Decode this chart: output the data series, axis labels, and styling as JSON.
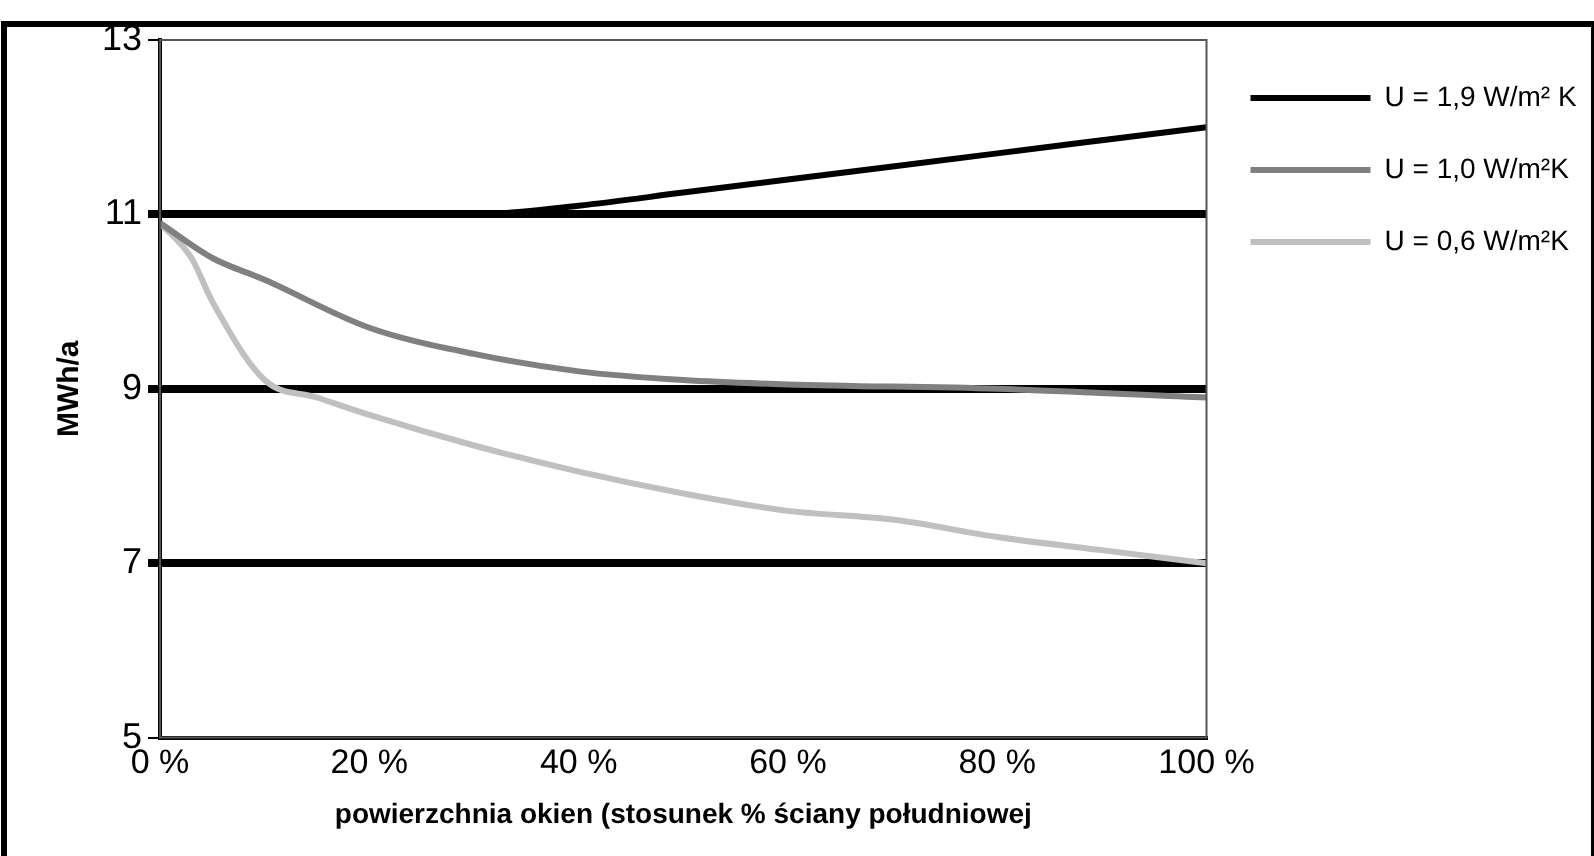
{
  "chart_data": {
    "type": "line",
    "xlabel": "powierzchnia okien (stosunek % ściany południowej",
    "ylabel": "MWh/a",
    "xlim": [
      0,
      100
    ],
    "xticks": [
      {
        "value": 0,
        "label": "0 %"
      },
      {
        "value": 20,
        "label": "20 %"
      },
      {
        "value": 40,
        "label": "40 %"
      },
      {
        "value": 60,
        "label": "60 %"
      },
      {
        "value": 80,
        "label": "80 %"
      },
      {
        "value": 100,
        "label": "100 %"
      }
    ],
    "ylim": [
      5,
      13
    ],
    "yticks": [
      5,
      7,
      9,
      11,
      13
    ],
    "grid": "y",
    "legend": "right",
    "marker": "none",
    "line_style": "solid",
    "series": [
      {
        "name": "U = 1,9 W/m² K",
        "color": "#000000",
        "x": [
          0,
          10,
          20,
          30,
          40,
          50,
          60,
          70,
          80,
          90,
          100
        ],
        "values": [
          11,
          11,
          11,
          11,
          11.1,
          11.25,
          11.4,
          11.55,
          11.7,
          11.85,
          12
        ]
      },
      {
        "name": "U = 1,0 W/m²K",
        "color": "#808080",
        "x": [
          0,
          5,
          10,
          20,
          30,
          40,
          50,
          60,
          80,
          100
        ],
        "values": [
          10.9,
          10.5,
          10.25,
          9.7,
          9.4,
          9.2,
          9.1,
          9.05,
          9,
          8.9
        ]
      },
      {
        "name": "U = 0,6 W/m²K",
        "color": "#c0c0c0",
        "x": [
          0,
          3,
          5,
          10,
          15,
          20,
          30,
          40,
          50,
          60,
          70,
          80,
          90,
          100
        ],
        "values": [
          10.9,
          10.5,
          10,
          9.1,
          8.9,
          8.7,
          8.35,
          8.05,
          7.8,
          7.6,
          7.5,
          7.3,
          7.15,
          7
        ]
      }
    ]
  }
}
